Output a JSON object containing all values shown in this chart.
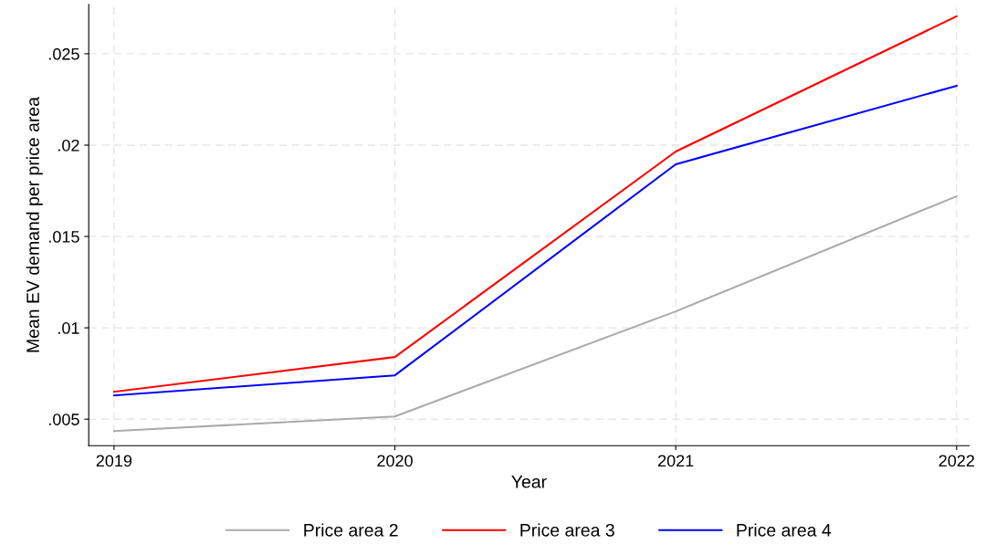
{
  "chart_data": {
    "type": "line",
    "xlabel": "Year",
    "ylabel": "Mean EV demand per price area",
    "x": [
      2019,
      2020,
      2021,
      2022
    ],
    "series": [
      {
        "name": "Price area 2",
        "color": "#aaaaaa",
        "values": [
          0.00435,
          0.00515,
          0.0109,
          0.0172
        ]
      },
      {
        "name": "Price area 3",
        "color": "#ff0000",
        "values": [
          0.0065,
          0.0084,
          0.01965,
          0.02705
        ]
      },
      {
        "name": "Price area 4",
        "color": "#0000ff",
        "values": [
          0.0063,
          0.0074,
          0.01895,
          0.02325
        ]
      }
    ],
    "xlim": [
      2018.91,
      2022.045
    ],
    "xticks": [
      2019,
      2020,
      2021,
      2022
    ],
    "ylim": [
      0.00355,
      0.0277
    ],
    "yticks": [
      {
        "value": 0.005,
        "label": ".005"
      },
      {
        "value": 0.01,
        "label": ".01"
      },
      {
        "value": 0.015,
        "label": ".015"
      },
      {
        "value": 0.02,
        "label": ".02"
      },
      {
        "value": 0.025,
        "label": ".025"
      }
    ],
    "grid": true,
    "legend": "bottom",
    "marker": "none",
    "line_style": "solid"
  }
}
